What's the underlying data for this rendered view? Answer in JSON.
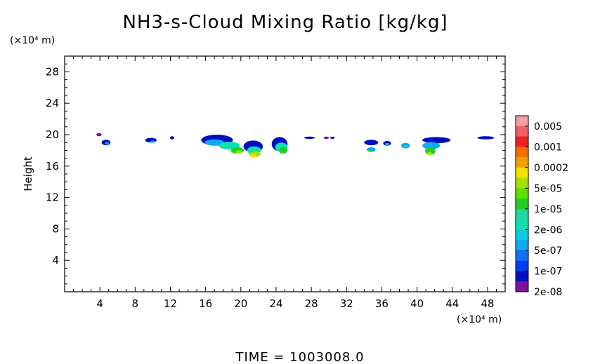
{
  "chart_data": {
    "type": "heatmap",
    "title": "NH3-s-Cloud Mixing Ratio [kg/kg]",
    "ylabel": "Height",
    "x_unit": "(×10⁴ m)",
    "y_unit": "(×10⁴ m)",
    "xlim": [
      0,
      50
    ],
    "ylim": [
      0,
      30
    ],
    "x_ticks": [
      4,
      8,
      12,
      16,
      20,
      24,
      28,
      32,
      36,
      40,
      44,
      48
    ],
    "y_ticks": [
      4,
      8,
      12,
      16,
      20,
      24,
      28
    ],
    "legend": {
      "placement": "right",
      "levels": [
        {
          "label": "0.005",
          "color": "#f4a0a0"
        },
        {
          "label": "0.001",
          "color": "#ee2020"
        },
        {
          "label": "0.0002",
          "color": "#f5a000"
        },
        {
          "label": "5e-05",
          "color": "#a8e000"
        },
        {
          "label": "1e-05",
          "color": "#20d020"
        },
        {
          "label": "2e-06",
          "color": "#10e0b0"
        },
        {
          "label": "5e-07",
          "color": "#10a8f0"
        },
        {
          "label": "1e-07",
          "color": "#0040f0"
        },
        {
          "label": "2e-08",
          "color": "#8010a0"
        }
      ],
      "extra_colors": [
        "#f06060",
        "#f57000",
        "#f5e000",
        "#60e000",
        "#20d8a0",
        "#10c8e0",
        "#1070f0",
        "#0010c0"
      ]
    },
    "cloud_patches": [
      {
        "x": 3.9,
        "y": 20.0,
        "w": 0.6,
        "h": 0.4,
        "color": "#8010a0"
      },
      {
        "x": 4.7,
        "y": 19.0,
        "w": 1.0,
        "h": 0.7,
        "color": "#0010c0"
      },
      {
        "x": 4.8,
        "y": 18.9,
        "w": 0.5,
        "h": 0.3,
        "color": "#10a8f0"
      },
      {
        "x": 9.8,
        "y": 19.3,
        "w": 1.3,
        "h": 0.6,
        "color": "#0010c0"
      },
      {
        "x": 10.0,
        "y": 19.1,
        "w": 0.6,
        "h": 0.3,
        "color": "#10a8f0"
      },
      {
        "x": 12.2,
        "y": 19.6,
        "w": 0.5,
        "h": 0.4,
        "color": "#0010c0"
      },
      {
        "x": 17.3,
        "y": 19.3,
        "w": 3.6,
        "h": 1.4,
        "color": "#0010c0"
      },
      {
        "x": 17.0,
        "y": 19.0,
        "w": 2.2,
        "h": 0.8,
        "color": "#10a8f0"
      },
      {
        "x": 18.7,
        "y": 18.6,
        "w": 2.4,
        "h": 1.0,
        "color": "#10e0b0"
      },
      {
        "x": 19.6,
        "y": 18.0,
        "w": 1.5,
        "h": 0.8,
        "color": "#20d020"
      },
      {
        "x": 19.8,
        "y": 17.8,
        "w": 0.8,
        "h": 0.4,
        "color": "#a8e000"
      },
      {
        "x": 21.4,
        "y": 18.5,
        "w": 2.2,
        "h": 1.5,
        "color": "#0010c0"
      },
      {
        "x": 21.5,
        "y": 18.0,
        "w": 1.6,
        "h": 1.0,
        "color": "#10e0b0"
      },
      {
        "x": 21.6,
        "y": 17.5,
        "w": 1.3,
        "h": 0.7,
        "color": "#a8e000"
      },
      {
        "x": 21.4,
        "y": 17.3,
        "w": 0.8,
        "h": 0.4,
        "color": "#f5e000"
      },
      {
        "x": 24.4,
        "y": 18.8,
        "w": 1.8,
        "h": 1.8,
        "color": "#0010c0"
      },
      {
        "x": 24.6,
        "y": 18.4,
        "w": 1.4,
        "h": 1.2,
        "color": "#10e0b0"
      },
      {
        "x": 24.8,
        "y": 18.0,
        "w": 1.0,
        "h": 0.8,
        "color": "#20d020"
      },
      {
        "x": 27.8,
        "y": 19.6,
        "w": 1.2,
        "h": 0.3,
        "color": "#0010c0"
      },
      {
        "x": 29.7,
        "y": 19.6,
        "w": 0.6,
        "h": 0.3,
        "color": "#8010a0"
      },
      {
        "x": 30.4,
        "y": 19.6,
        "w": 0.5,
        "h": 0.3,
        "color": "#0010c0"
      },
      {
        "x": 34.8,
        "y": 19.0,
        "w": 1.6,
        "h": 0.7,
        "color": "#0010c0"
      },
      {
        "x": 34.8,
        "y": 18.1,
        "w": 1.0,
        "h": 0.6,
        "color": "#10a8f0"
      },
      {
        "x": 34.6,
        "y": 18.0,
        "w": 0.5,
        "h": 0.3,
        "color": "#20d020"
      },
      {
        "x": 36.6,
        "y": 18.9,
        "w": 0.9,
        "h": 0.6,
        "color": "#0010c0"
      },
      {
        "x": 36.6,
        "y": 18.8,
        "w": 0.5,
        "h": 0.3,
        "color": "#10a8f0"
      },
      {
        "x": 38.7,
        "y": 18.6,
        "w": 1.0,
        "h": 0.7,
        "color": "#10a8f0"
      },
      {
        "x": 38.7,
        "y": 18.5,
        "w": 0.5,
        "h": 0.3,
        "color": "#10e0b0"
      },
      {
        "x": 42.2,
        "y": 19.3,
        "w": 3.2,
        "h": 0.8,
        "color": "#0010c0"
      },
      {
        "x": 41.6,
        "y": 18.6,
        "w": 2.0,
        "h": 0.9,
        "color": "#10a8f0"
      },
      {
        "x": 41.5,
        "y": 17.9,
        "w": 1.2,
        "h": 0.9,
        "color": "#20d020"
      },
      {
        "x": 41.4,
        "y": 17.6,
        "w": 0.6,
        "h": 0.4,
        "color": "#a8e000"
      },
      {
        "x": 47.8,
        "y": 19.6,
        "w": 1.9,
        "h": 0.4,
        "color": "#0010c0"
      }
    ]
  },
  "time_label": "TIME  =  1003008.0"
}
